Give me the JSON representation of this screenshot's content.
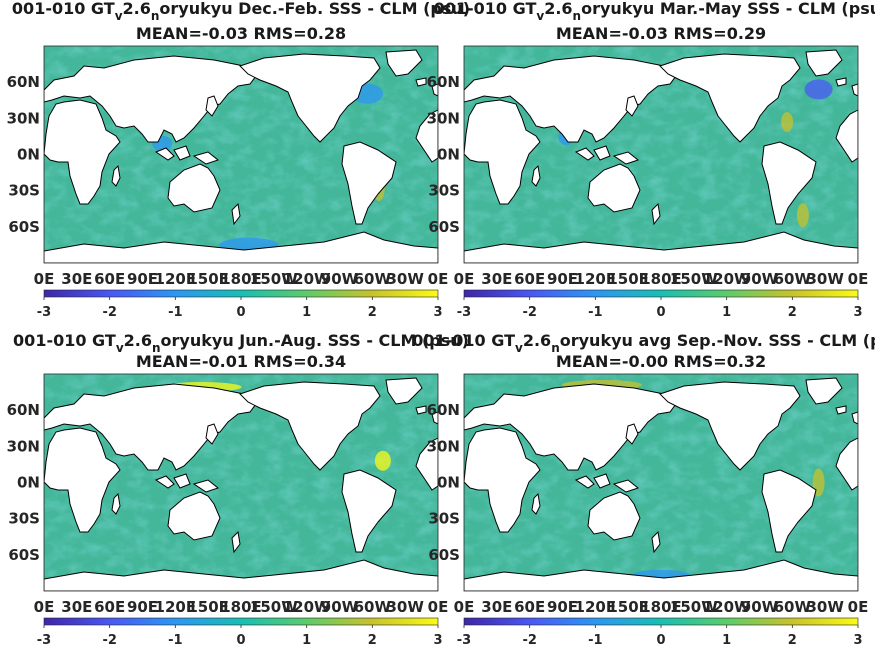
{
  "colors": {
    "ocean_base": "#44b79a",
    "land": "#ffffff",
    "coast": "#000000",
    "colormap": [
      "#3e26a8",
      "#4a58f5",
      "#2c96f3",
      "#18bfb4",
      "#5ecc69",
      "#c7c22c",
      "#f9fb15"
    ]
  },
  "chart_data": [
    {
      "type": "heatmap",
      "title_line1": "001-010 GT",
      "title_sub1": "v",
      "title_mid": "2.6",
      "title_sub2": "n",
      "title_tail": "oryukyu  Dec.-Feb. SSS - CLM (psu)",
      "title_line2": "MEAN=-0.03   RMS=0.28",
      "xticks": [
        "0E",
        "30E",
        "60E",
        "90E",
        "120E",
        "150E",
        "180E",
        "150W",
        "120W",
        "90W",
        "60W",
        "30W",
        "0E"
      ],
      "yticks": [
        "60N",
        "30N",
        "0N",
        "30S",
        "60S"
      ],
      "colorbar": {
        "ticks": [
          "-3",
          "-2",
          "-1",
          "0",
          "1",
          "2",
          "3"
        ],
        "range": [
          -3,
          3
        ]
      }
    },
    {
      "type": "heatmap",
      "title_line1": "001-010 GT",
      "title_sub1": "v",
      "title_mid": "2.6",
      "title_sub2": "n",
      "title_tail": "oryukyu Mar.-May SSS - CLM (psu)",
      "title_line2": "MEAN=-0.03   RMS=0.29",
      "xticks": [
        "0E",
        "30E",
        "60E",
        "90E",
        "120E",
        "150E",
        "180E",
        "150W",
        "120W",
        "90W",
        "60W",
        "30W",
        "0E"
      ],
      "yticks": [
        "60N",
        "30N",
        "0N",
        "30S",
        "60S"
      ],
      "colorbar": {
        "ticks": [
          "-3",
          "-2",
          "-1",
          "0",
          "1",
          "2",
          "3"
        ],
        "range": [
          -3,
          3
        ]
      }
    },
    {
      "type": "heatmap",
      "title_line1": "001-010 GT",
      "title_sub1": "v",
      "title_mid": "2.6",
      "title_sub2": "n",
      "title_tail": "oryukyu Jun.-Aug. SSS - CLM (psu)",
      "title_line2": "MEAN=-0.01   RMS=0.34",
      "xticks": [
        "0E",
        "30E",
        "60E",
        "90E",
        "120E",
        "150E",
        "180E",
        "150W",
        "120W",
        "90W",
        "60W",
        "30W",
        "0E"
      ],
      "yticks": [
        "60N",
        "30N",
        "0N",
        "30S",
        "60S"
      ],
      "colorbar": {
        "ticks": [
          "-3",
          "-2",
          "-1",
          "0",
          "1",
          "2",
          "3"
        ],
        "range": [
          -3,
          3
        ]
      }
    },
    {
      "type": "heatmap",
      "title_line1": "001-010 GT",
      "title_sub1": "v",
      "title_mid": "2.6",
      "title_sub2": "n",
      "title_tail": "oryukyu avg Sep.-Nov. SSS - CLM (psu)",
      "title_line2": "MEAN=-0.00   RMS=0.32",
      "xticks": [
        "0E",
        "30E",
        "60E",
        "90E",
        "120E",
        "150E",
        "180E",
        "150W",
        "120W",
        "90W",
        "60W",
        "30W",
        "0E"
      ],
      "yticks": [
        "60N",
        "30N",
        "0N",
        "30S",
        "60S"
      ],
      "colorbar": {
        "ticks": [
          "-3",
          "-2",
          "-1",
          "0",
          "1",
          "2",
          "3"
        ],
        "range": [
          -3,
          3
        ]
      }
    }
  ]
}
